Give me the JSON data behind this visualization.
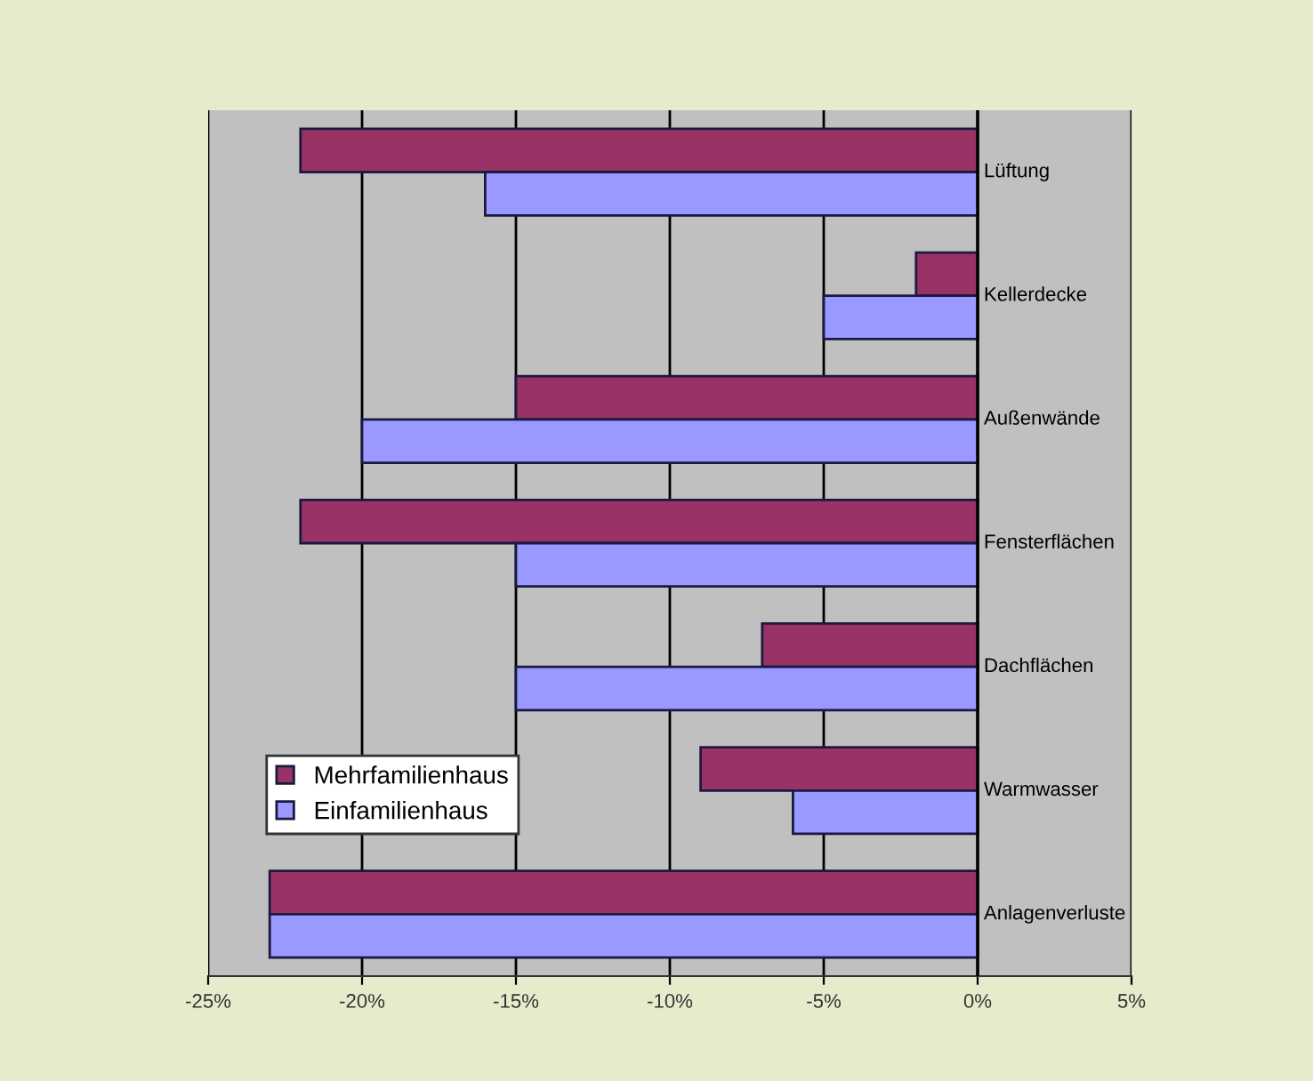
{
  "chart_data": {
    "type": "bar",
    "orientation": "horizontal",
    "categories": [
      "Lüftung",
      "Kellerdecke",
      "Außenwände",
      "Fensterflächen",
      "Dachflächen",
      "Warmwasser",
      "Anlagenverluste"
    ],
    "series": [
      {
        "name": "Mehrfamilienhaus",
        "color": "#993366",
        "values": [
          -22,
          -2,
          -15,
          -22,
          -7,
          -9,
          -23
        ]
      },
      {
        "name": "Einfamilienhaus",
        "color": "#9999ff",
        "values": [
          -16,
          -5,
          -20,
          -15,
          -15,
          -6,
          -23
        ]
      }
    ],
    "xlim": [
      -25,
      5
    ],
    "xticks": [
      {
        "value": -25,
        "label": "-25%"
      },
      {
        "value": -20,
        "label": "-20%"
      },
      {
        "value": -15,
        "label": "-15%"
      },
      {
        "value": -10,
        "label": "-10%"
      },
      {
        "value": -5,
        "label": "-5%"
      },
      {
        "value": 0,
        "label": "0%"
      },
      {
        "value": 5,
        "label": "5%"
      }
    ],
    "grid": "x",
    "legend": "bottom left"
  }
}
